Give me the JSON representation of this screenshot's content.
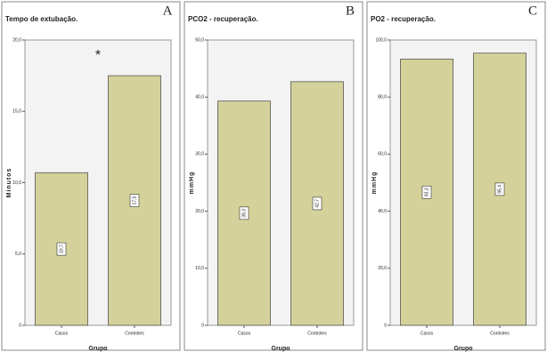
{
  "chart_data": [
    {
      "type": "bar",
      "panel_label": "A",
      "title": "Tempo de extubação.",
      "annotation": "*",
      "x_label": "Grupo",
      "y_label": "Minutos",
      "categories": [
        "Casos",
        "Controles"
      ],
      "values": [
        10.7,
        17.5
      ],
      "value_labels": [
        "10,7",
        "17,5"
      ],
      "color": "#d4d19a",
      "ylim": [
        0,
        20
      ],
      "yticks": [
        0,
        {
          "value": 5,
          "label": "5,0"
        },
        {
          "value": 10,
          "label": "10,0"
        },
        {
          "value": 15,
          "label": "15,0"
        },
        {
          "value": 20,
          "label": "20,0"
        }
      ]
    },
    {
      "type": "bar",
      "panel_label": "B",
      "title": "PCO2 - recuperação.",
      "x_label": "Grupo",
      "y_label": "mmHg",
      "categories": [
        "Casos",
        "Controles"
      ],
      "values": [
        39.3,
        42.7
      ],
      "value_labels": [
        "39,3",
        "42,7"
      ],
      "color": "#d4d19a",
      "ylim": [
        0,
        50
      ],
      "yticks": [
        0,
        {
          "value": 10,
          "label": "10,0"
        },
        {
          "value": 20,
          "label": "20,0"
        },
        {
          "value": 30,
          "label": "30,0"
        },
        {
          "value": 40,
          "label": "40,0"
        },
        {
          "value": 50,
          "label": "50,0"
        }
      ]
    },
    {
      "type": "bar",
      "panel_label": "C",
      "title": "PO2 - recuperação.",
      "x_label": "Grupo",
      "y_label": "mmHg",
      "categories": [
        "Casos",
        "Controles"
      ],
      "values": [
        93.3,
        95.4
      ],
      "value_labels": [
        "93,3",
        "95,4"
      ],
      "color": "#d4d19a",
      "ylim": [
        0,
        100
      ],
      "yticks": [
        0,
        {
          "value": 20,
          "label": "20,0"
        },
        {
          "value": 40,
          "label": "40,0"
        },
        {
          "value": 60,
          "label": "60,0"
        },
        {
          "value": 80,
          "label": "80,0"
        },
        {
          "value": 100,
          "label": "100,0"
        }
      ]
    }
  ]
}
